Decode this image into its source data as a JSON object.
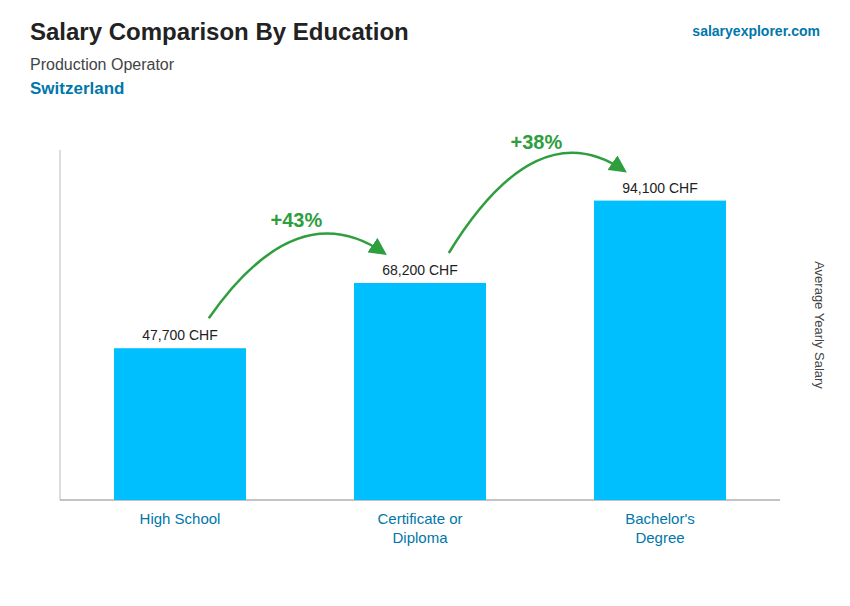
{
  "chart_data": {
    "type": "bar",
    "title": "Salary Comparison By Education",
    "subtitle": [
      "Production Operator",
      "Switzerland"
    ],
    "source": "salaryexplorer.com",
    "y_label": "Average Yearly Salary",
    "categories": [
      "High School",
      "Certificate or\nDiploma",
      "Bachelor's\nDegree"
    ],
    "values": [
      47700,
      68200,
      94100
    ],
    "value_labels": [
      "47,700 CHF",
      "68,200 CHF",
      "94,100 CHF"
    ],
    "data_labels": true,
    "annotations": [
      "+43%",
      "+38%"
    ],
    "color": "#00BFFF",
    "ylim": [
      0,
      110000
    ],
    "tick_labels": "x",
    "grid": false
  }
}
